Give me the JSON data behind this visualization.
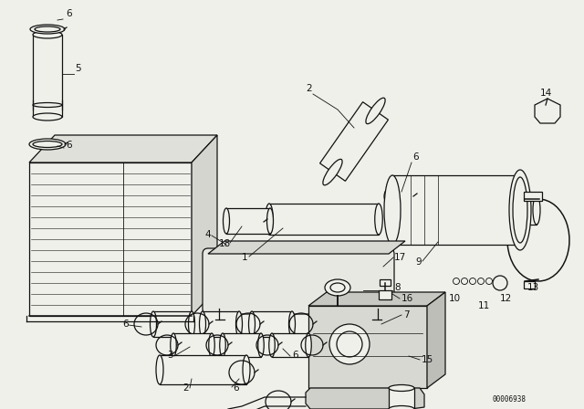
{
  "bg_color": "#f0f0eb",
  "line_color": "#111111",
  "diagram_id": "00006938",
  "figsize": [
    6.4,
    4.48
  ],
  "dpi": 100
}
